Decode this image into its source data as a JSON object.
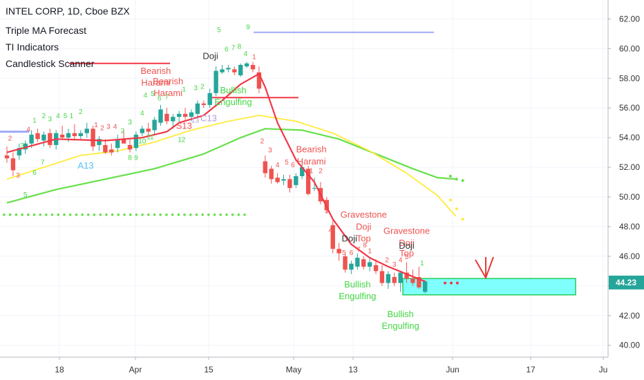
{
  "legend": {
    "title": "INTEL CORP, 1D, Cboe BZX",
    "indicators": [
      "Triple MA Forecast",
      "TI Indicators",
      "Candlestick Scanner"
    ]
  },
  "colors": {
    "up": "#26a69a",
    "down": "#ef5350",
    "ma_fast": "#f23645",
    "ma_mid": "#ffeb3b",
    "ma_slow": "#66e04a",
    "level_blue": "#9fa8f8",
    "zone_fill": "#80ffff",
    "zone_border": "#22cc55",
    "price_tag": "#26a69a",
    "label_red": "#ef5350",
    "label_green": "#43d643",
    "label_dark": "#333333",
    "label_cyan": "#4fc3f7",
    "label_purple": "#b39ddb",
    "axis_text": "#333333",
    "grid": "#f0f3fa"
  },
  "chart_data": {
    "type": "candlestick",
    "title": "INTEL CORP, 1D, Cboe BZX",
    "y_range": [
      39.5,
      63.2
    ],
    "y_ticks": [
      "40.00",
      "42.00",
      "44.00",
      "46.00",
      "48.00",
      "50.00",
      "52.00",
      "54.00",
      "56.00",
      "58.00",
      "60.00",
      "62.00"
    ],
    "x_ticks": [
      "18",
      "Apr",
      "15",
      "May",
      "13",
      "Jun",
      "17",
      "Ju"
    ],
    "current_price": "44.23",
    "candles": [
      {
        "o": 52.8,
        "h": 53.4,
        "l": 52.3,
        "c": 52.6
      },
      {
        "o": 52.6,
        "h": 53.0,
        "l": 51.4,
        "c": 51.8
      },
      {
        "o": 52.8,
        "h": 53.6,
        "l": 52.5,
        "c": 53.3
      },
      {
        "o": 53.2,
        "h": 53.8,
        "l": 52.9,
        "c": 53.6
      },
      {
        "o": 53.6,
        "h": 54.5,
        "l": 53.3,
        "c": 54.2
      },
      {
        "o": 54.3,
        "h": 54.6,
        "l": 53.7,
        "c": 53.9
      },
      {
        "o": 53.8,
        "h": 54.4,
        "l": 53.4,
        "c": 54.2
      },
      {
        "o": 54.3,
        "h": 54.6,
        "l": 53.3,
        "c": 53.5
      },
      {
        "o": 53.5,
        "h": 54.5,
        "l": 53.2,
        "c": 54.3
      },
      {
        "o": 54.2,
        "h": 54.8,
        "l": 53.9,
        "c": 54.0
      },
      {
        "o": 54.0,
        "h": 54.6,
        "l": 53.7,
        "c": 54.3
      },
      {
        "o": 54.3,
        "h": 54.9,
        "l": 53.9,
        "c": 54.1
      },
      {
        "o": 54.1,
        "h": 54.5,
        "l": 53.9,
        "c": 54.3
      },
      {
        "o": 54.3,
        "h": 55.0,
        "l": 54.0,
        "c": 54.6
      },
      {
        "o": 54.6,
        "h": 54.8,
        "l": 53.1,
        "c": 53.4
      },
      {
        "o": 53.5,
        "h": 54.1,
        "l": 53.1,
        "c": 53.9
      },
      {
        "o": 53.5,
        "h": 53.9,
        "l": 52.9,
        "c": 53.0
      },
      {
        "o": 53.2,
        "h": 53.6,
        "l": 52.8,
        "c": 53.0
      },
      {
        "o": 53.3,
        "h": 54.2,
        "l": 53.0,
        "c": 53.9
      },
      {
        "o": 53.9,
        "h": 54.5,
        "l": 53.6,
        "c": 53.6
      },
      {
        "o": 53.5,
        "h": 53.9,
        "l": 53.0,
        "c": 53.2
      },
      {
        "o": 53.3,
        "h": 54.4,
        "l": 53.1,
        "c": 54.2
      },
      {
        "o": 54.3,
        "h": 54.8,
        "l": 54.1,
        "c": 54.6
      },
      {
        "o": 54.6,
        "h": 55.0,
        "l": 54.2,
        "c": 54.4
      },
      {
        "o": 54.5,
        "h": 55.4,
        "l": 54.2,
        "c": 55.2
      },
      {
        "o": 55.0,
        "h": 56.2,
        "l": 54.8,
        "c": 55.9
      },
      {
        "o": 55.6,
        "h": 56.0,
        "l": 54.9,
        "c": 55.1
      },
      {
        "o": 55.1,
        "h": 55.6,
        "l": 54.6,
        "c": 55.4
      },
      {
        "o": 55.4,
        "h": 55.8,
        "l": 55.0,
        "c": 55.6
      },
      {
        "o": 55.6,
        "h": 56.0,
        "l": 55.2,
        "c": 55.4
      },
      {
        "o": 55.4,
        "h": 55.9,
        "l": 55.1,
        "c": 55.7
      },
      {
        "o": 55.6,
        "h": 56.5,
        "l": 55.4,
        "c": 56.3
      },
      {
        "o": 56.3,
        "h": 56.5,
        "l": 56.0,
        "c": 56.2
      },
      {
        "o": 56.2,
        "h": 57.3,
        "l": 56.0,
        "c": 57.0
      },
      {
        "o": 57.0,
        "h": 58.8,
        "l": 56.8,
        "c": 58.5
      },
      {
        "o": 58.4,
        "h": 58.9,
        "l": 58.3,
        "c": 58.6
      },
      {
        "o": 58.6,
        "h": 58.9,
        "l": 58.4,
        "c": 58.7
      },
      {
        "o": 58.6,
        "h": 58.8,
        "l": 58.2,
        "c": 58.4
      },
      {
        "o": 58.2,
        "h": 59.0,
        "l": 58.1,
        "c": 58.9
      },
      {
        "o": 58.8,
        "h": 59.1,
        "l": 58.7,
        "c": 59.0
      },
      {
        "o": 58.9,
        "h": 59.1,
        "l": 58.4,
        "c": 58.6
      },
      {
        "o": 58.4,
        "h": 58.8,
        "l": 57.0,
        "c": 57.3
      },
      {
        "o": 52.4,
        "h": 52.8,
        "l": 51.3,
        "c": 51.6
      },
      {
        "o": 51.9,
        "h": 52.1,
        "l": 50.9,
        "c": 51.2
      },
      {
        "o": 51.3,
        "h": 51.6,
        "l": 50.9,
        "c": 51.0
      },
      {
        "o": 51.1,
        "h": 51.5,
        "l": 50.8,
        "c": 51.2
      },
      {
        "o": 51.2,
        "h": 51.5,
        "l": 50.3,
        "c": 50.6
      },
      {
        "o": 50.8,
        "h": 51.6,
        "l": 50.6,
        "c": 51.4
      },
      {
        "o": 51.4,
        "h": 52.3,
        "l": 51.2,
        "c": 52.0
      },
      {
        "o": 51.9,
        "h": 52.1,
        "l": 50.1,
        "c": 50.2
      },
      {
        "o": 50.6,
        "h": 51.3,
        "l": 50.4,
        "c": 50.6
      },
      {
        "o": 50.6,
        "h": 51.0,
        "l": 49.5,
        "c": 49.7
      },
      {
        "o": 49.8,
        "h": 50.0,
        "l": 48.9,
        "c": 49.1
      },
      {
        "o": 48.1,
        "h": 48.4,
        "l": 46.2,
        "c": 46.5
      },
      {
        "o": 46.5,
        "h": 46.9,
        "l": 45.7,
        "c": 46.2
      },
      {
        "o": 46.0,
        "h": 46.3,
        "l": 44.9,
        "c": 45.1
      },
      {
        "o": 45.1,
        "h": 45.7,
        "l": 44.8,
        "c": 45.5
      },
      {
        "o": 45.3,
        "h": 46.2,
        "l": 45.1,
        "c": 45.9
      },
      {
        "o": 45.8,
        "h": 46.0,
        "l": 45.1,
        "c": 45.3
      },
      {
        "o": 45.3,
        "h": 45.9,
        "l": 45.0,
        "c": 45.6
      },
      {
        "o": 45.4,
        "h": 45.8,
        "l": 44.8,
        "c": 45.0
      },
      {
        "o": 45.0,
        "h": 45.4,
        "l": 44.0,
        "c": 44.2
      },
      {
        "o": 44.2,
        "h": 45.0,
        "l": 43.8,
        "c": 44.8
      },
      {
        "o": 44.6,
        "h": 44.9,
        "l": 44.0,
        "c": 44.2
      },
      {
        "o": 44.2,
        "h": 44.9,
        "l": 43.6,
        "c": 44.9
      },
      {
        "o": 44.9,
        "h": 45.6,
        "l": 44.2,
        "c": 44.5
      },
      {
        "o": 44.5,
        "h": 45.1,
        "l": 44.0,
        "c": 44.2
      },
      {
        "o": 44.6,
        "h": 45.3,
        "l": 43.8,
        "c": 43.9
      },
      {
        "o": 43.6,
        "h": 44.4,
        "l": 43.5,
        "c": 44.3
      }
    ],
    "ma_fast": [
      [
        0,
        53.0
      ],
      [
        8,
        53.9
      ],
      [
        16,
        53.8
      ],
      [
        22,
        54.0
      ],
      [
        26,
        54.4
      ],
      [
        28,
        55.0
      ],
      [
        32,
        55.5
      ],
      [
        35,
        56.5
      ],
      [
        38,
        57.6
      ],
      [
        41,
        58.3
      ],
      [
        42,
        57.4
      ],
      [
        44,
        55.0
      ],
      [
        47,
        52.5
      ],
      [
        50,
        51.0
      ],
      [
        53,
        48.5
      ],
      [
        56,
        46.8
      ],
      [
        59,
        45.9
      ],
      [
        62,
        45.3
      ],
      [
        65,
        44.8
      ],
      [
        68,
        44.3
      ]
    ],
    "ma_mid": [
      [
        0,
        51.2
      ],
      [
        6,
        52.0
      ],
      [
        12,
        52.8
      ],
      [
        18,
        53.1
      ],
      [
        24,
        53.7
      ],
      [
        30,
        54.5
      ],
      [
        36,
        55.1
      ],
      [
        41,
        55.5
      ],
      [
        47,
        55.1
      ],
      [
        53,
        54.3
      ],
      [
        59,
        53.1
      ],
      [
        65,
        51.6
      ],
      [
        70,
        50.1
      ],
      [
        73,
        48.7
      ]
    ],
    "ma_slow": [
      [
        0,
        49.6
      ],
      [
        8,
        50.5
      ],
      [
        16,
        51.2
      ],
      [
        24,
        51.9
      ],
      [
        32,
        52.9
      ],
      [
        38,
        54.0
      ],
      [
        42,
        54.6
      ],
      [
        48,
        54.5
      ],
      [
        54,
        53.9
      ],
      [
        60,
        52.9
      ],
      [
        66,
        51.9
      ],
      [
        70,
        51.3
      ],
      [
        73,
        51.2
      ]
    ],
    "ma_slow_dots": [
      [
        71,
        51.4
      ],
      [
        72,
        51.2
      ],
      [
        73,
        51.1
      ]
    ],
    "ma_mid_dots": [
      [
        71,
        49.8
      ],
      [
        72,
        49.2
      ],
      [
        73,
        48.5
      ]
    ],
    "ma_fast_dots": [
      [
        69,
        44.2
      ],
      [
        70,
        44.2
      ],
      [
        71,
        44.2
      ]
    ],
    "green_dotted_level": {
      "value": 48.8,
      "x_from": 0,
      "x_to": 38
    },
    "purple_level": {
      "value": 61.1,
      "x_from": 41,
      "x_to": 70
    },
    "blue_level": {
      "value": 54.4,
      "x_from": 0,
      "x_to": 4
    },
    "red_level_1": {
      "value": 59.0,
      "x_from": 11,
      "x_to": 27
    },
    "red_level_2": {
      "value": 56.7,
      "x_from": 34,
      "x_to": 48
    },
    "zone": {
      "low": 43.4,
      "high": 44.5,
      "x_from": 64,
      "x_to": 93
    },
    "labels": [
      {
        "text": "2",
        "x": 0.5,
        "y": 53.8,
        "color": "label_red"
      },
      {
        "text": "3",
        "x": 1.8,
        "y": 51.3,
        "color": "label_red"
      },
      {
        "text": "3",
        "x": 2.5,
        "y": 53.3,
        "color": "label_green"
      },
      {
        "text": "5",
        "x": 3,
        "y": 50.0,
        "color": "label_green"
      },
      {
        "text": "4",
        "x": 3.5,
        "y": 54.4,
        "color": "label_red"
      },
      {
        "text": "6",
        "x": 4.5,
        "y": 51.5,
        "color": "label_green"
      },
      {
        "text": "7",
        "x": 5.8,
        "y": 52.2,
        "color": "label_green"
      },
      {
        "text": "1",
        "x": 4.5,
        "y": 55.0,
        "color": "label_green"
      },
      {
        "text": "2",
        "x": 6,
        "y": 55.3,
        "color": "label_green"
      },
      {
        "text": "3",
        "x": 7,
        "y": 55.1,
        "color": "label_green"
      },
      {
        "text": "4",
        "x": 8.3,
        "y": 55.3,
        "color": "label_green"
      },
      {
        "text": "5",
        "x": 9.5,
        "y": 55.3,
        "color": "label_green"
      },
      {
        "text": "1",
        "x": 10.5,
        "y": 55.3,
        "color": "label_green"
      },
      {
        "text": "2",
        "x": 12,
        "y": 55.6,
        "color": "label_green"
      },
      {
        "text": "1",
        "x": 14.5,
        "y": 54.7,
        "color": "label_red"
      },
      {
        "text": "2",
        "x": 15.5,
        "y": 54.5,
        "color": "label_red"
      },
      {
        "text": "3",
        "x": 16.5,
        "y": 54.6,
        "color": "label_red"
      },
      {
        "text": "4",
        "x": 17.6,
        "y": 54.6,
        "color": "label_red"
      },
      {
        "text": "A13",
        "x": 12.8,
        "y": 51.9,
        "color": "label_cyan"
      },
      {
        "text": "2",
        "x": 18.8,
        "y": 54.3,
        "color": "label_green"
      },
      {
        "text": "3",
        "x": 20,
        "y": 54.9,
        "color": "label_green"
      },
      {
        "text": "4",
        "x": 22,
        "y": 55.5,
        "color": "label_green"
      },
      {
        "text": "10",
        "x": 22,
        "y": 53.6,
        "color": "label_green"
      },
      {
        "text": "11",
        "x": 23.3,
        "y": 53.9,
        "color": "label_green"
      },
      {
        "text": "8",
        "x": 20,
        "y": 52.5,
        "color": "label_green"
      },
      {
        "text": "9",
        "x": 21,
        "y": 52.5,
        "color": "label_green"
      },
      {
        "text": "4",
        "x": 22.5,
        "y": 56.7,
        "color": "label_green"
      },
      {
        "text": "5",
        "x": 23.7,
        "y": 56.8,
        "color": "label_green"
      },
      {
        "text": "Bearish",
        "x": 24.2,
        "y": 58.3,
        "color": "label_red"
      },
      {
        "text": "Harami",
        "x": 24.2,
        "y": 57.5,
        "color": "label_red"
      },
      {
        "text": "Bearish",
        "x": 26.2,
        "y": 57.6,
        "color": "label_red"
      },
      {
        "text": "Harami",
        "x": 26.2,
        "y": 56.8,
        "color": "label_red"
      },
      {
        "text": "6",
        "x": 24.8,
        "y": 56.5,
        "color": "label_green"
      },
      {
        "text": "7",
        "x": 26,
        "y": 56.6,
        "color": "label_green"
      },
      {
        "text": "S13",
        "x": 28.8,
        "y": 54.6,
        "color": "label_red"
      },
      {
        "text": "12",
        "x": 28.4,
        "y": 53.7,
        "color": "label_green"
      },
      {
        "text": "C13",
        "x": 32.8,
        "y": 55.1,
        "color": "label_purple"
      },
      {
        "text": "13",
        "x": 30.6,
        "y": 55.0,
        "color": "label_purple"
      },
      {
        "text": "2",
        "x": 31.8,
        "y": 57.3,
        "color": "label_green"
      },
      {
        "text": "3",
        "x": 30.7,
        "y": 57.2,
        "color": "label_green"
      },
      {
        "text": "1",
        "x": 28.8,
        "y": 57.1,
        "color": "label_green"
      },
      {
        "text": "Doji",
        "x": 33.1,
        "y": 59.3,
        "color": "label_dark"
      },
      {
        "text": "5",
        "x": 34.5,
        "y": 61.1,
        "color": "label_green"
      },
      {
        "text": "6",
        "x": 35.7,
        "y": 59.8,
        "color": "label_green"
      },
      {
        "text": "7",
        "x": 36.8,
        "y": 59.9,
        "color": "label_green"
      },
      {
        "text": "8",
        "x": 37.8,
        "y": 60.0,
        "color": "label_green"
      },
      {
        "text": "9",
        "x": 39.2,
        "y": 61.3,
        "color": "label_green"
      },
      {
        "text": "4",
        "x": 38.8,
        "y": 59.5,
        "color": "label_green"
      },
      {
        "text": "1",
        "x": 40.2,
        "y": 59.3,
        "color": "label_red"
      },
      {
        "text": "Bullish",
        "x": 36.8,
        "y": 57.0,
        "color": "label_green"
      },
      {
        "text": "Engulfing",
        "x": 36.8,
        "y": 56.2,
        "color": "label_green"
      },
      {
        "text": "2",
        "x": 41.5,
        "y": 53.6,
        "color": "label_red"
      },
      {
        "text": "3",
        "x": 42.8,
        "y": 53.0,
        "color": "label_red"
      },
      {
        "text": "4",
        "x": 44,
        "y": 52.0,
        "color": "label_red"
      },
      {
        "text": "5",
        "x": 45.5,
        "y": 52.2,
        "color": "label_red"
      },
      {
        "text": "6",
        "x": 46.5,
        "y": 52.0,
        "color": "label_red"
      },
      {
        "text": "Bearish",
        "x": 49.5,
        "y": 53.0,
        "color": "label_red"
      },
      {
        "text": "Harami",
        "x": 49.5,
        "y": 52.2,
        "color": "label_red"
      },
      {
        "text": "1",
        "x": 49.5,
        "y": 51.6,
        "color": "label_red"
      },
      {
        "text": "2",
        "x": 51,
        "y": 51.6,
        "color": "label_red"
      },
      {
        "text": "3",
        "x": 52,
        "y": 48.9,
        "color": "label_red"
      },
      {
        "text": "4",
        "x": 52.6,
        "y": 47.6,
        "color": "label_red"
      },
      {
        "text": "Gravestone",
        "x": 58,
        "y": 48.6,
        "color": "label_red"
      },
      {
        "text": "Doji",
        "x": 58,
        "y": 47.8,
        "color": "label_red"
      },
      {
        "text": "Top",
        "x": 58,
        "y": 47.0,
        "color": "label_red"
      },
      {
        "text": "Doji",
        "x": 55.7,
        "y": 47.0,
        "color": "label_dark"
      },
      {
        "text": "5",
        "x": 54.8,
        "y": 46.1,
        "color": "label_red"
      },
      {
        "text": "6",
        "x": 56,
        "y": 46.1,
        "color": "label_red"
      },
      {
        "text": "7",
        "x": 57.2,
        "y": 46.3,
        "color": "label_red"
      },
      {
        "text": "8",
        "x": 58.2,
        "y": 46.6,
        "color": "label_red"
      },
      {
        "text": "1",
        "x": 59,
        "y": 46.2,
        "color": "label_red"
      },
      {
        "text": "Bullish",
        "x": 57,
        "y": 43.9,
        "color": "label_green"
      },
      {
        "text": "Engulfing",
        "x": 57,
        "y": 43.1,
        "color": "label_green"
      },
      {
        "text": "2",
        "x": 61.8,
        "y": 45.6,
        "color": "label_red"
      },
      {
        "text": "3",
        "x": 63,
        "y": 45.3,
        "color": "label_red"
      },
      {
        "text": "4",
        "x": 64,
        "y": 45.6,
        "color": "label_red"
      },
      {
        "text": "5",
        "x": 65,
        "y": 45.8,
        "color": "label_red"
      },
      {
        "text": "1",
        "x": 67.5,
        "y": 45.4,
        "color": "label_green"
      },
      {
        "text": "Gravestone",
        "x": 65,
        "y": 47.5,
        "color": "label_red"
      },
      {
        "text": "Doji",
        "x": 65,
        "y": 46.7,
        "color": "label_red"
      },
      {
        "text": "Top",
        "x": 65,
        "y": 46.0,
        "color": "label_red"
      },
      {
        "text": "Doji",
        "x": 65,
        "y": 46.5,
        "color": "label_dark"
      },
      {
        "text": "Bullish",
        "x": 64,
        "y": 41.9,
        "color": "label_green"
      },
      {
        "text": "Engulfing",
        "x": 64,
        "y": 41.1,
        "color": "label_green"
      }
    ]
  }
}
